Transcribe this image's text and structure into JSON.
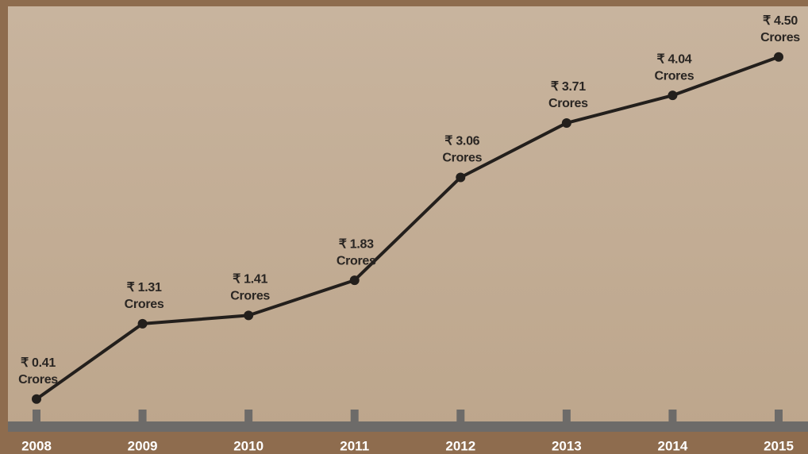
{
  "chart_data": {
    "type": "line",
    "categories": [
      "2008",
      "2009",
      "2010",
      "2011",
      "2012",
      "2013",
      "2014",
      "2015"
    ],
    "values": [
      0.41,
      1.31,
      1.41,
      1.83,
      3.06,
      3.71,
      4.04,
      4.5
    ],
    "value_labels": [
      "₹ 0.41",
      "₹ 1.31",
      "₹ 1.41",
      "₹ 1.83",
      "₹ 3.06",
      "₹ 3.71",
      "₹ 4.04",
      "₹ 4.50"
    ],
    "value_label_unit": "Crores",
    "color": "#231f1c",
    "ylim": [
      0,
      5
    ]
  }
}
